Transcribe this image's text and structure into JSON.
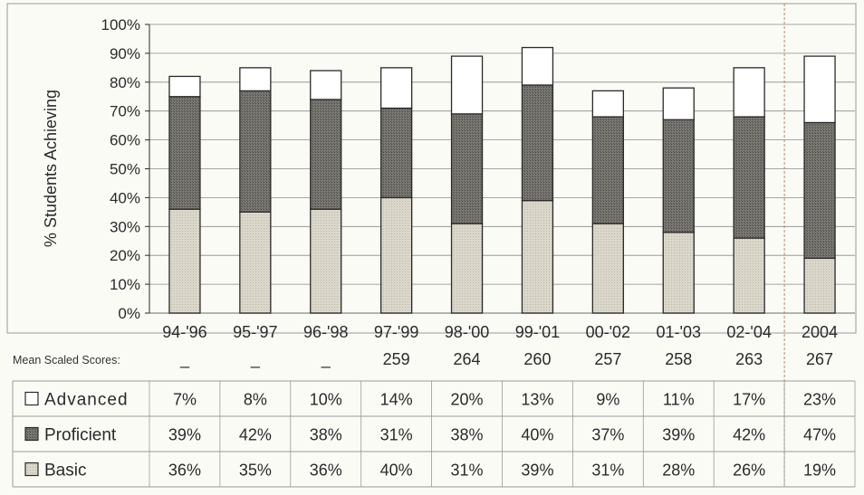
{
  "chart_data": {
    "type": "bar",
    "stacked": true,
    "ylabel": "% Students Achieving",
    "ylim": [
      0,
      100
    ],
    "y_ticks": [
      "0%",
      "10%",
      "20%",
      "30%",
      "40%",
      "50%",
      "60%",
      "70%",
      "80%",
      "90%",
      "100%"
    ],
    "grid": true,
    "categories": [
      "94-'96",
      "95-'97",
      "96-'98",
      "97-'99",
      "98-'00",
      "99-'01",
      "00-'02",
      "01-'03",
      "02-'04",
      "2004"
    ],
    "series": [
      {
        "name": "Basic",
        "values": [
          36,
          35,
          36,
          40,
          31,
          39,
          31,
          28,
          26,
          19
        ],
        "labels": [
          "36%",
          "35%",
          "36%",
          "40%",
          "31%",
          "39%",
          "31%",
          "28%",
          "26%",
          "19%"
        ]
      },
      {
        "name": "Proficient",
        "values": [
          39,
          42,
          38,
          31,
          38,
          40,
          37,
          39,
          42,
          47
        ],
        "labels": [
          "39%",
          "42%",
          "38%",
          "31%",
          "38%",
          "40%",
          "37%",
          "39%",
          "42%",
          "47%"
        ]
      },
      {
        "name": "Advanced",
        "values": [
          7,
          8,
          10,
          14,
          20,
          13,
          9,
          11,
          17,
          23
        ],
        "labels": [
          "7%",
          "8%",
          "10%",
          "14%",
          "20%",
          "13%",
          "9%",
          "11%",
          "17%",
          "23%"
        ]
      }
    ],
    "mean_scores_label": "Mean Scaled Scores:",
    "mean_scores": [
      "_",
      "_",
      "_",
      "259",
      "264",
      "260",
      "257",
      "258",
      "263",
      "267"
    ],
    "table_rows": [
      "Advanced",
      "Proficient",
      "Basic"
    ],
    "colors": {
      "Basic": "#d9d6c8",
      "Proficient": "#6e6c66",
      "Advanced": "#ffffff",
      "outline": "#2a2a2a",
      "grid": "#8a8a8a",
      "separator": "#b8876a"
    }
  }
}
